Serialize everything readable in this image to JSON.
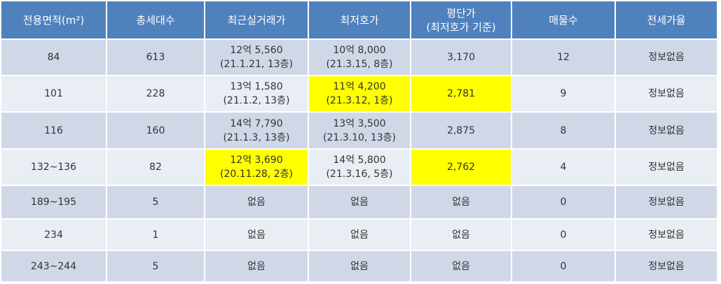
{
  "table": {
    "header": [
      "전용면적(m²)",
      "총세대수",
      "최근실거래가",
      "최저호가",
      [
        "평단가",
        "(최저호가 기준)"
      ],
      "매물수",
      "전세가율"
    ],
    "highlight_color": "#ffff00",
    "rows": [
      {
        "cells": [
          "84",
          "613",
          [
            "12억 5,560",
            "(21.1.21, 13층)"
          ],
          [
            "10억 8,000",
            "(21.3.15, 8층)"
          ],
          "3,170",
          "12",
          "정보없음"
        ],
        "highlighted_columns": []
      },
      {
        "cells": [
          "101",
          "228",
          [
            "13억 1,580",
            "(21.1.2, 13층)"
          ],
          [
            "11억 4,200",
            "(21.3.12, 1층)"
          ],
          "2,781",
          "9",
          "정보없음"
        ],
        "highlighted_columns": [
          3,
          4
        ]
      },
      {
        "cells": [
          "116",
          "160",
          [
            "14억 7,790",
            "(21.1.3, 13층)"
          ],
          [
            "13억 3,500",
            "(21.3.10, 13층)"
          ],
          "2,875",
          "8",
          "정보없음"
        ],
        "highlighted_columns": []
      },
      {
        "cells": [
          "132~136",
          "82",
          [
            "12억 3,690",
            "(20.11.28, 2층)"
          ],
          [
            "14억 5,800",
            "(21.3.16, 5층)"
          ],
          "2,762",
          "4",
          "정보없음"
        ],
        "highlighted_columns": [
          2,
          4
        ]
      },
      {
        "cells": [
          "189~195",
          "5",
          "없음",
          "없음",
          "없음",
          "0",
          "정보없음"
        ],
        "highlighted_columns": []
      },
      {
        "cells": [
          "234",
          "1",
          "없음",
          "없음",
          "없음",
          "0",
          "정보없음"
        ],
        "highlighted_columns": []
      },
      {
        "cells": [
          "243~244",
          "5",
          "없음",
          "없음",
          "없음",
          "0",
          "정보없음"
        ],
        "highlighted_columns": []
      }
    ]
  }
}
